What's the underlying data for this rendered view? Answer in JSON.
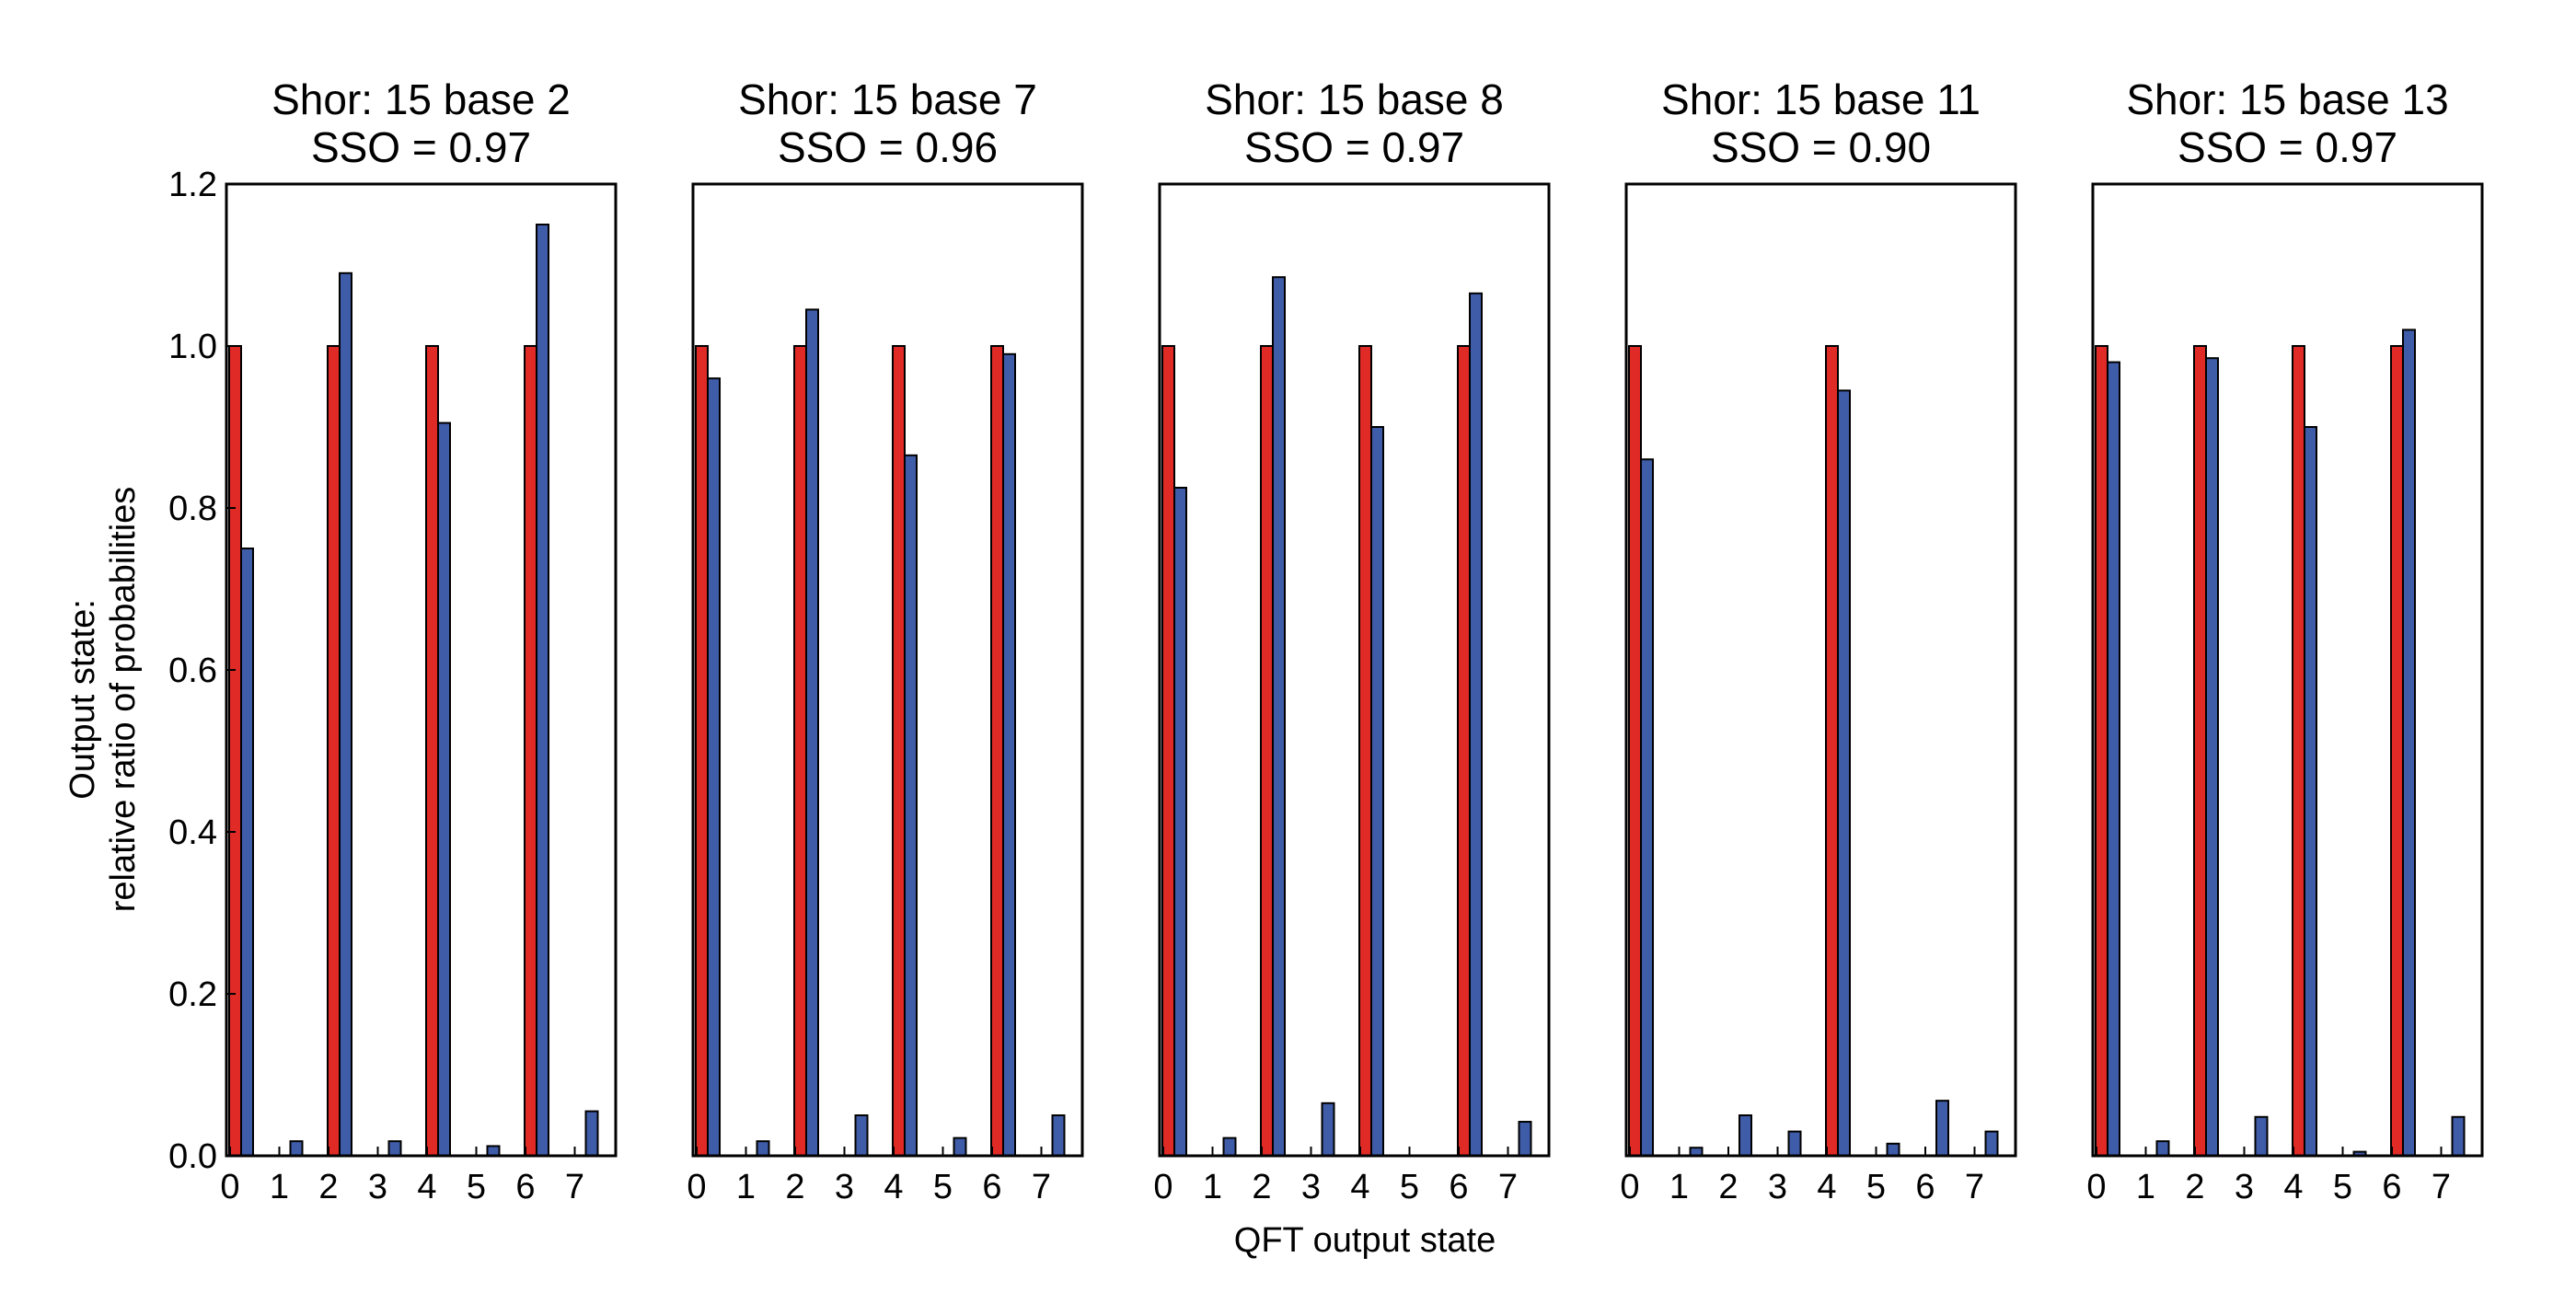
{
  "chart_data": {
    "type": "bar",
    "xlabel": "QFT output state",
    "ylabel_lines": [
      "Output state:",
      "relative ratio of probabilities"
    ],
    "ylim": [
      0,
      1.2
    ],
    "yticks": [
      "0.0",
      "0.2",
      "0.4",
      "0.6",
      "0.8",
      "1.0",
      "1.2"
    ],
    "categories": [
      "0",
      "1",
      "2",
      "3",
      "4",
      "5",
      "6",
      "7"
    ],
    "colors": {
      "red": "#e02a26",
      "blue": "#3f5ca8",
      "edge": "#000000"
    },
    "panels": [
      {
        "title": "Shor: 15 base 2",
        "subtitle": "SSO = 0.97",
        "red": [
          1.0,
          0,
          1.0,
          0,
          1.0,
          0,
          1.0,
          0
        ],
        "blue": [
          0.75,
          0.018,
          1.09,
          0.018,
          0.905,
          0.012,
          1.15,
          0.055
        ]
      },
      {
        "title": "Shor: 15 base 7",
        "subtitle": "SSO = 0.96",
        "red": [
          1.0,
          0,
          1.0,
          0,
          1.0,
          0,
          1.0,
          0
        ],
        "blue": [
          0.96,
          0.018,
          1.045,
          0.05,
          0.865,
          0.022,
          0.99,
          0.05
        ]
      },
      {
        "title": "Shor: 15 base 8",
        "subtitle": "SSO = 0.97",
        "red": [
          1.0,
          0,
          1.0,
          0,
          1.0,
          0,
          1.0,
          0
        ],
        "blue": [
          0.825,
          0.022,
          1.085,
          0.065,
          0.9,
          0,
          1.065,
          0.042
        ]
      },
      {
        "title": "Shor: 15 base 11",
        "subtitle": "SSO = 0.90",
        "red": [
          1.0,
          0,
          0,
          0,
          1.0,
          0,
          0,
          0
        ],
        "blue": [
          0.86,
          0.01,
          0.05,
          0.03,
          0.945,
          0.015,
          0.068,
          0.03
        ]
      },
      {
        "title": "Shor: 15 base 13",
        "subtitle": "SSO = 0.97",
        "red": [
          1.0,
          0,
          1.0,
          0,
          1.0,
          0,
          1.0,
          0
        ],
        "blue": [
          0.98,
          0.018,
          0.985,
          0.048,
          0.9,
          0.005,
          1.02,
          0.048
        ]
      }
    ]
  }
}
